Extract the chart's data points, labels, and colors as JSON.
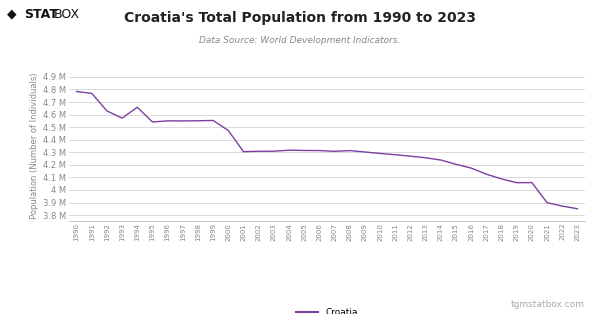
{
  "title": "Croatia's Total Population from 1990 to 2023",
  "subtitle": "Data Source: World Development Indicators.",
  "ylabel": "Population (Number of Individuals)",
  "line_color": "#7B3FA0",
  "background_color": "#ffffff",
  "grid_color": "#cccccc",
  "legend_label": "Croatia",
  "watermark": "tgmstatbox.com",
  "years": [
    1990,
    1991,
    1992,
    1993,
    1994,
    1995,
    1996,
    1997,
    1998,
    1999,
    2000,
    2001,
    2002,
    2003,
    2004,
    2005,
    2006,
    2007,
    2008,
    2009,
    2010,
    2011,
    2012,
    2013,
    2014,
    2015,
    2016,
    2017,
    2018,
    2019,
    2020,
    2021,
    2022,
    2023
  ],
  "population": [
    4784265,
    4768825,
    4629415,
    4572000,
    4658500,
    4541300,
    4550400,
    4549900,
    4550700,
    4553500,
    4473000,
    4304900,
    4308200,
    4308400,
    4316800,
    4314600,
    4313700,
    4307700,
    4313400,
    4302300,
    4290700,
    4280600,
    4269100,
    4256300,
    4238400,
    4204300,
    4174300,
    4125700,
    4087900,
    4058200,
    4058500,
    3899000,
    3871800,
    3850500
  ],
  "yticks": [
    3800000,
    3900000,
    4000000,
    4100000,
    4200000,
    4300000,
    4400000,
    4500000,
    4600000,
    4700000,
    4800000,
    4900000
  ],
  "ylim": [
    3750000,
    4950000
  ],
  "title_fontsize": 10,
  "subtitle_fontsize": 6.5,
  "ylabel_fontsize": 6,
  "ytick_fontsize": 6,
  "xtick_fontsize": 5,
  "legend_fontsize": 6.5,
  "watermark_fontsize": 6.5,
  "logo_stat_color": "#111111",
  "logo_box_color": "#111111"
}
